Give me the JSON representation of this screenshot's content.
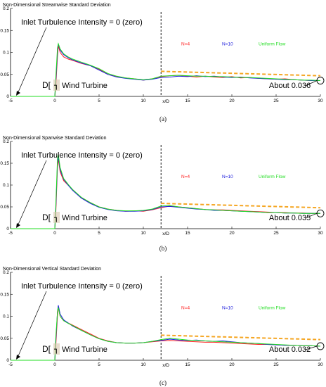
{
  "colors": {
    "n4": "#ff2020",
    "n10": "#2020dd",
    "uniform": "#22dd22",
    "trend": "#f5a623",
    "axis": "#000000"
  },
  "chart_data": [
    {
      "type": "line",
      "panel_label": "(a)",
      "title": "Non-Dimensional Streamwise Standard Deviation",
      "xlabel": "x/D",
      "ylabel": "",
      "xlim": [
        -5,
        30
      ],
      "ylim": [
        0,
        0.2
      ],
      "xticks": [
        "-5",
        "0",
        "5",
        "10",
        "15",
        "20",
        "25",
        "30"
      ],
      "yticks": [
        "0",
        "0.05",
        "0.1",
        "0.15",
        "0.2"
      ],
      "annotations": {
        "inlet": "Inlet Turbulence Intensity = 0 (zero)",
        "d_mark": "D[",
        "turbine_symbol": "┐",
        "turbine": "Wind Turbine",
        "about": "About 0.036"
      },
      "x": [
        -5,
        0,
        0.1,
        0.3,
        0.4,
        0.6,
        1,
        1.5,
        2,
        3,
        4,
        5,
        6,
        7,
        8,
        9,
        10,
        11,
        12,
        13,
        14,
        15,
        16,
        17,
        18,
        19,
        20,
        21,
        22,
        23,
        24,
        25,
        26,
        27,
        28,
        29,
        30
      ],
      "series": [
        {
          "name": "N=4",
          "color_key": "n4",
          "values": [
            0,
            0,
            0.02,
            0.09,
            0.115,
            0.1,
            0.09,
            0.085,
            0.082,
            0.075,
            0.07,
            0.062,
            0.05,
            0.045,
            0.042,
            0.04,
            0.037,
            0.04,
            0.045,
            0.047,
            0.048,
            0.046,
            0.044,
            0.046,
            0.044,
            0.043,
            0.045,
            0.042,
            0.043,
            0.041,
            0.04,
            0.039,
            0.04,
            0.038,
            0.037,
            0.036,
            0.036
          ]
        },
        {
          "name": "N=10",
          "color_key": "n10",
          "values": [
            0,
            0,
            0.03,
            0.1,
            0.12,
            0.105,
            0.095,
            0.088,
            0.083,
            0.076,
            0.07,
            0.06,
            0.05,
            0.044,
            0.041,
            0.039,
            0.037,
            0.039,
            0.043,
            0.044,
            0.046,
            0.045,
            0.047,
            0.045,
            0.046,
            0.044,
            0.043,
            0.044,
            0.042,
            0.041,
            0.04,
            0.039,
            0.038,
            0.038,
            0.037,
            0.036,
            0.036
          ]
        },
        {
          "name": "Uniform Flow",
          "color_key": "uniform",
          "values": [
            0,
            0,
            0.04,
            0.11,
            0.12,
            0.108,
            0.097,
            0.09,
            0.085,
            0.078,
            0.071,
            0.063,
            0.052,
            0.046,
            0.042,
            0.04,
            0.038,
            0.04,
            0.046,
            0.047,
            0.048,
            0.047,
            0.046,
            0.046,
            0.045,
            0.045,
            0.044,
            0.043,
            0.043,
            0.042,
            0.041,
            0.04,
            0.039,
            0.038,
            0.037,
            0.037,
            0.036
          ]
        }
      ],
      "trend_line": {
        "x": [
          12,
          30
        ],
        "y": [
          0.057,
          0.047
        ]
      },
      "marker": {
        "x": 30,
        "y": 0.036
      },
      "vertical_line_x": 12
    },
    {
      "type": "line",
      "panel_label": "(b)",
      "title": "Non-Dimensional Spanwise Standard Deviation",
      "xlabel": "x/D",
      "ylabel": "",
      "xlim": [
        -5,
        30
      ],
      "ylim": [
        0,
        0.2
      ],
      "xticks": [
        "-5",
        "0",
        "5",
        "10",
        "15",
        "20",
        "25",
        "30"
      ],
      "yticks": [
        "0",
        "0.05",
        "0.1",
        "0.15",
        "0.2"
      ],
      "annotations": {
        "inlet": "Inlet Turbulence Intensity = 0 (zero)",
        "d_mark": "D[",
        "turbine_symbol": "┐",
        "turbine": "Wind Turbine",
        "about": "About 0.035"
      },
      "x": [
        -5,
        0,
        0.1,
        0.3,
        0.4,
        0.6,
        1,
        1.5,
        2,
        3,
        4,
        5,
        6,
        7,
        8,
        9,
        10,
        11,
        12,
        13,
        14,
        15,
        16,
        17,
        18,
        19,
        20,
        21,
        22,
        23,
        24,
        25,
        26,
        27,
        28,
        29,
        30
      ],
      "series": [
        {
          "name": "N=4",
          "color_key": "n4",
          "values": [
            0,
            0,
            0.03,
            0.14,
            0.16,
            0.13,
            0.11,
            0.1,
            0.09,
            0.07,
            0.06,
            0.05,
            0.045,
            0.042,
            0.04,
            0.041,
            0.04,
            0.043,
            0.048,
            0.052,
            0.05,
            0.048,
            0.046,
            0.044,
            0.043,
            0.043,
            0.042,
            0.041,
            0.04,
            0.039,
            0.038,
            0.037,
            0.037,
            0.036,
            0.036,
            0.035,
            0.035
          ]
        },
        {
          "name": "N=10",
          "color_key": "n10",
          "values": [
            0,
            0,
            0.04,
            0.15,
            0.165,
            0.135,
            0.113,
            0.1,
            0.088,
            0.07,
            0.058,
            0.049,
            0.044,
            0.041,
            0.04,
            0.04,
            0.041,
            0.044,
            0.05,
            0.051,
            0.049,
            0.047,
            0.045,
            0.044,
            0.042,
            0.042,
            0.041,
            0.04,
            0.039,
            0.038,
            0.037,
            0.037,
            0.036,
            0.036,
            0.035,
            0.035,
            0.035
          ]
        },
        {
          "name": "Uniform Flow",
          "color_key": "uniform",
          "values": [
            0,
            0,
            0.05,
            0.16,
            0.17,
            0.14,
            0.115,
            0.102,
            0.09,
            0.072,
            0.06,
            0.05,
            0.045,
            0.042,
            0.041,
            0.041,
            0.042,
            0.045,
            0.052,
            0.053,
            0.05,
            0.048,
            0.046,
            0.044,
            0.043,
            0.042,
            0.041,
            0.04,
            0.039,
            0.038,
            0.037,
            0.037,
            0.036,
            0.036,
            0.035,
            0.035,
            0.035
          ]
        }
      ],
      "trend_line": {
        "x": [
          12,
          30
        ],
        "y": [
          0.058,
          0.048
        ]
      },
      "marker": {
        "x": 30,
        "y": 0.035
      },
      "vertical_line_x": 12
    },
    {
      "type": "line",
      "panel_label": "(c)",
      "title": "Non-Dimensional Vertical Standard Deviation",
      "xlabel": "x/D",
      "ylabel": "",
      "xlim": [
        -5,
        30
      ],
      "ylim": [
        0,
        0.2
      ],
      "xticks": [
        "-5",
        "0",
        "5",
        "10",
        "15",
        "20",
        "25",
        "30"
      ],
      "yticks": [
        "0",
        "0.05",
        "0.1",
        "0.15",
        "0.2"
      ],
      "annotations": {
        "inlet": "Inlet Turbulence Intensity = 0 (zero)",
        "d_mark": "D[",
        "turbine_symbol": "┐",
        "turbine": "Wind Turbine",
        "about": "About 0.032"
      },
      "x": [
        -5,
        0,
        0.1,
        0.3,
        0.4,
        0.6,
        1,
        1.5,
        2,
        3,
        4,
        5,
        6,
        7,
        8,
        9,
        10,
        11,
        12,
        13,
        14,
        15,
        16,
        17,
        18,
        19,
        20,
        21,
        22,
        23,
        24,
        25,
        26,
        27,
        28,
        29,
        30
      ],
      "series": [
        {
          "name": "N=4",
          "color_key": "n4",
          "values": [
            0,
            0,
            0.03,
            0.1,
            0.12,
            0.1,
            0.09,
            0.085,
            0.08,
            0.07,
            0.06,
            0.05,
            0.044,
            0.04,
            0.039,
            0.039,
            0.04,
            0.042,
            0.044,
            0.045,
            0.044,
            0.043,
            0.042,
            0.041,
            0.041,
            0.04,
            0.039,
            0.038,
            0.037,
            0.036,
            0.036,
            0.035,
            0.034,
            0.034,
            0.033,
            0.033,
            0.032
          ]
        },
        {
          "name": "N=10",
          "color_key": "n10",
          "values": [
            0,
            0,
            0.04,
            0.11,
            0.125,
            0.105,
            0.092,
            0.085,
            0.078,
            0.068,
            0.058,
            0.049,
            0.043,
            0.04,
            0.039,
            0.039,
            0.04,
            0.043,
            0.045,
            0.048,
            0.046,
            0.045,
            0.046,
            0.044,
            0.043,
            0.044,
            0.042,
            0.04,
            0.039,
            0.038,
            0.036,
            0.035,
            0.034,
            0.034,
            0.033,
            0.033,
            0.032
          ]
        },
        {
          "name": "Uniform Flow",
          "color_key": "uniform",
          "values": [
            0,
            0,
            0.05,
            0.11,
            0.12,
            0.1,
            0.09,
            0.084,
            0.079,
            0.068,
            0.058,
            0.049,
            0.043,
            0.04,
            0.039,
            0.039,
            0.04,
            0.043,
            0.047,
            0.05,
            0.048,
            0.046,
            0.045,
            0.044,
            0.043,
            0.042,
            0.041,
            0.04,
            0.039,
            0.038,
            0.037,
            0.036,
            0.035,
            0.034,
            0.033,
            0.033,
            0.032
          ]
        }
      ],
      "trend_line": {
        "x": [
          12,
          30
        ],
        "y": [
          0.057,
          0.047
        ]
      },
      "marker": {
        "x": 30,
        "y": 0.032
      },
      "vertical_line_x": 12
    }
  ]
}
